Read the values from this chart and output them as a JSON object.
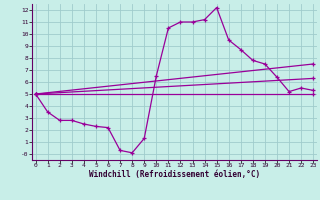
{
  "bg_color": "#c8eee8",
  "grid_color": "#a0cccc",
  "line_color": "#990099",
  "xlabel": "Windchill (Refroidissement éolien,°C)",
  "xlim": [
    0,
    23
  ],
  "ylim": [
    -0.5,
    12.5
  ],
  "xticks": [
    0,
    1,
    2,
    3,
    4,
    5,
    6,
    7,
    8,
    9,
    10,
    11,
    12,
    13,
    14,
    15,
    16,
    17,
    18,
    19,
    20,
    21,
    22,
    23
  ],
  "yticks": [
    0,
    1,
    2,
    3,
    4,
    5,
    6,
    7,
    8,
    9,
    10,
    11,
    12
  ],
  "ytick_labels": [
    "-0",
    "1",
    "2",
    "3",
    "4",
    "5",
    "6",
    "7",
    "8",
    "9",
    "10",
    "11",
    "12"
  ],
  "main_x": [
    0,
    1,
    2,
    3,
    4,
    5,
    6,
    7,
    8,
    9,
    10,
    11,
    12,
    13,
    14,
    15,
    16,
    17,
    18,
    19,
    20,
    21,
    22,
    23
  ],
  "main_y": [
    5.0,
    3.5,
    2.8,
    2.8,
    2.5,
    2.3,
    2.2,
    0.3,
    0.1,
    1.3,
    6.5,
    10.5,
    11.0,
    11.0,
    11.2,
    12.2,
    9.5,
    8.7,
    7.8,
    7.5,
    6.4,
    5.2,
    5.5,
    5.3
  ],
  "trend1_x": [
    0,
    23
  ],
  "trend1_y": [
    5.0,
    7.5
  ],
  "trend2_x": [
    0,
    23
  ],
  "trend2_y": [
    5.0,
    6.3
  ],
  "trend3_x": [
    0,
    23
  ],
  "trend3_y": [
    5.0,
    5.0
  ]
}
